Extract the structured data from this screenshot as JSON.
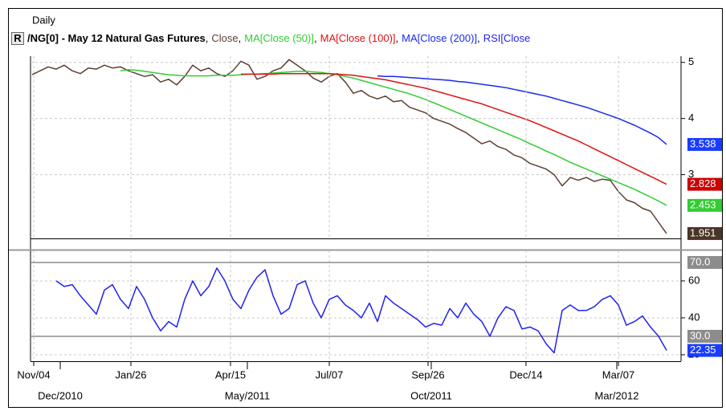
{
  "chart_data": [
    {
      "type": "line",
      "header": "Daily",
      "button": "R",
      "title": "/NG[0] - May 12 Natural Gas Futures",
      "legend_separator": ",",
      "xlim": [
        -0.2,
        80.8
      ],
      "ylim": [
        1.85,
        5.11
      ],
      "yticks": [
        3,
        4,
        5
      ],
      "grid": true,
      "series": [
        {
          "name": "Close",
          "color": "#5c4033",
          "label_color": "#4a3528",
          "values": [
            4.78,
            4.85,
            4.92,
            4.88,
            4.95,
            4.85,
            4.8,
            4.9,
            4.88,
            4.95,
            4.9,
            4.92,
            4.85,
            4.8,
            4.75,
            4.78,
            4.65,
            4.7,
            4.6,
            4.75,
            4.95,
            4.85,
            4.9,
            4.8,
            4.75,
            4.85,
            5.02,
            4.95,
            4.7,
            4.75,
            4.85,
            4.9,
            5.05,
            4.95,
            4.85,
            4.72,
            4.65,
            4.75,
            4.8,
            4.65,
            4.45,
            4.5,
            4.4,
            4.35,
            4.4,
            4.3,
            4.32,
            4.2,
            4.15,
            4.1,
            4.0,
            3.95,
            3.9,
            3.82,
            3.75,
            3.65,
            3.55,
            3.6,
            3.5,
            3.45,
            3.35,
            3.3,
            3.2,
            3.15,
            3.1,
            3.0,
            2.8,
            2.95,
            2.9,
            2.95,
            2.88,
            2.92,
            2.9,
            2.7,
            2.55,
            2.5,
            2.4,
            2.35,
            2.15,
            1.951
          ]
        },
        {
          "name": "MA[Close (50)]",
          "color": "#33cc33",
          "label_color": "#33cc33",
          "values": [
            null,
            null,
            null,
            null,
            null,
            null,
            null,
            null,
            null,
            null,
            null,
            4.85,
            4.87,
            4.86,
            4.84,
            4.82,
            4.8,
            4.78,
            4.77,
            4.76,
            4.76,
            4.76,
            4.76,
            4.77,
            4.77,
            4.77,
            4.78,
            4.79,
            4.79,
            4.8,
            4.81,
            4.82,
            4.83,
            4.84,
            4.84,
            4.83,
            4.82,
            4.8,
            4.78,
            4.75,
            4.72,
            4.68,
            4.64,
            4.6,
            4.56,
            4.52,
            4.48,
            4.44,
            4.39,
            4.34,
            4.28,
            4.22,
            4.16,
            4.1,
            4.04,
            3.98,
            3.92,
            3.86,
            3.8,
            3.74,
            3.68,
            3.62,
            3.55,
            3.49,
            3.42,
            3.36,
            3.29,
            3.22,
            3.16,
            3.1,
            3.04,
            2.98,
            2.92,
            2.86,
            2.8,
            2.74,
            2.67,
            2.6,
            2.53,
            2.453
          ]
        },
        {
          "name": "MA[Close (100)]",
          "color": "#dd1111",
          "label_color": "#cc0000",
          "values": [
            null,
            null,
            null,
            null,
            null,
            null,
            null,
            null,
            null,
            null,
            null,
            null,
            null,
            null,
            null,
            null,
            null,
            null,
            null,
            null,
            null,
            null,
            null,
            null,
            null,
            null,
            4.79,
            4.79,
            4.79,
            4.79,
            4.79,
            4.8,
            4.8,
            4.8,
            4.8,
            4.8,
            4.8,
            4.8,
            4.79,
            4.78,
            4.77,
            4.75,
            4.73,
            4.71,
            4.69,
            4.66,
            4.63,
            4.6,
            4.57,
            4.54,
            4.5,
            4.46,
            4.42,
            4.38,
            4.34,
            4.3,
            4.26,
            4.21,
            4.16,
            4.11,
            4.06,
            4.01,
            3.96,
            3.9,
            3.84,
            3.78,
            3.72,
            3.66,
            3.6,
            3.53,
            3.46,
            3.39,
            3.32,
            3.25,
            3.18,
            3.11,
            3.04,
            2.97,
            2.9,
            2.828
          ]
        },
        {
          "name": "MA[Close (200)]",
          "color": "#1a2aee",
          "label_color": "#1a3cff",
          "values": [
            null,
            null,
            null,
            null,
            null,
            null,
            null,
            null,
            null,
            null,
            null,
            null,
            null,
            null,
            null,
            null,
            null,
            null,
            null,
            null,
            null,
            null,
            null,
            null,
            null,
            null,
            null,
            null,
            null,
            null,
            null,
            null,
            null,
            null,
            null,
            null,
            null,
            null,
            null,
            null,
            null,
            null,
            null,
            4.76,
            4.75,
            4.75,
            4.74,
            4.73,
            4.72,
            4.71,
            4.7,
            4.69,
            4.68,
            4.66,
            4.65,
            4.63,
            4.61,
            4.59,
            4.57,
            4.55,
            4.52,
            4.49,
            4.46,
            4.43,
            4.4,
            4.36,
            4.32,
            4.28,
            4.24,
            4.2,
            4.15,
            4.1,
            4.05,
            4.0,
            3.94,
            3.88,
            3.81,
            3.74,
            3.66,
            3.538
          ]
        }
      ]
    },
    {
      "type": "line",
      "xlim": [
        -0.2,
        80.8
      ],
      "ylim": [
        16.5,
        76.5
      ],
      "yticks": [
        20,
        40,
        60
      ],
      "grid": true,
      "hlines": [
        {
          "value": 70,
          "label": "70.0"
        },
        {
          "value": 30,
          "label": "30.0"
        }
      ],
      "hline_color": "#8c8c8c",
      "series": [
        {
          "name": "RSI[Close",
          "color": "#2222ee",
          "label_color": "#1a3cff",
          "values": [
            null,
            null,
            null,
            60,
            57,
            58,
            52,
            47,
            42,
            55,
            58,
            50,
            45,
            57,
            50,
            40,
            33,
            38,
            35,
            50,
            60,
            52,
            57,
            67,
            60,
            50,
            45,
            55,
            62,
            66,
            52,
            42,
            45,
            58,
            60,
            48,
            40,
            50,
            52,
            47,
            44,
            40,
            48,
            38,
            52,
            48,
            45,
            42,
            39,
            35,
            37,
            36,
            45,
            40,
            48,
            42,
            38,
            30,
            40,
            46,
            44,
            34,
            35,
            33,
            26,
            21,
            44,
            47,
            44,
            44,
            46,
            50,
            52,
            47,
            36,
            38,
            41,
            35,
            30,
            22.35
          ]
        }
      ],
      "xticks": [
        {
          "value": 0.2,
          "label": "Nov/04"
        },
        {
          "value": 12.3,
          "label": "Jan/26"
        },
        {
          "value": 24.7,
          "label": "Apr/15"
        },
        {
          "value": 37,
          "label": "Jul/07"
        },
        {
          "value": 49.3,
          "label": "Sep/26"
        },
        {
          "value": 61.5,
          "label": "Dec/14"
        },
        {
          "value": 73,
          "label": "Mar/07"
        }
      ],
      "xticks2": [
        {
          "value": 3.5,
          "label": "Dec/2010"
        },
        {
          "value": 26.8,
          "label": "May/2011"
        },
        {
          "value": 49.7,
          "label": "Oct/2011"
        },
        {
          "value": 72.8,
          "label": "Mar/2012"
        }
      ]
    }
  ]
}
